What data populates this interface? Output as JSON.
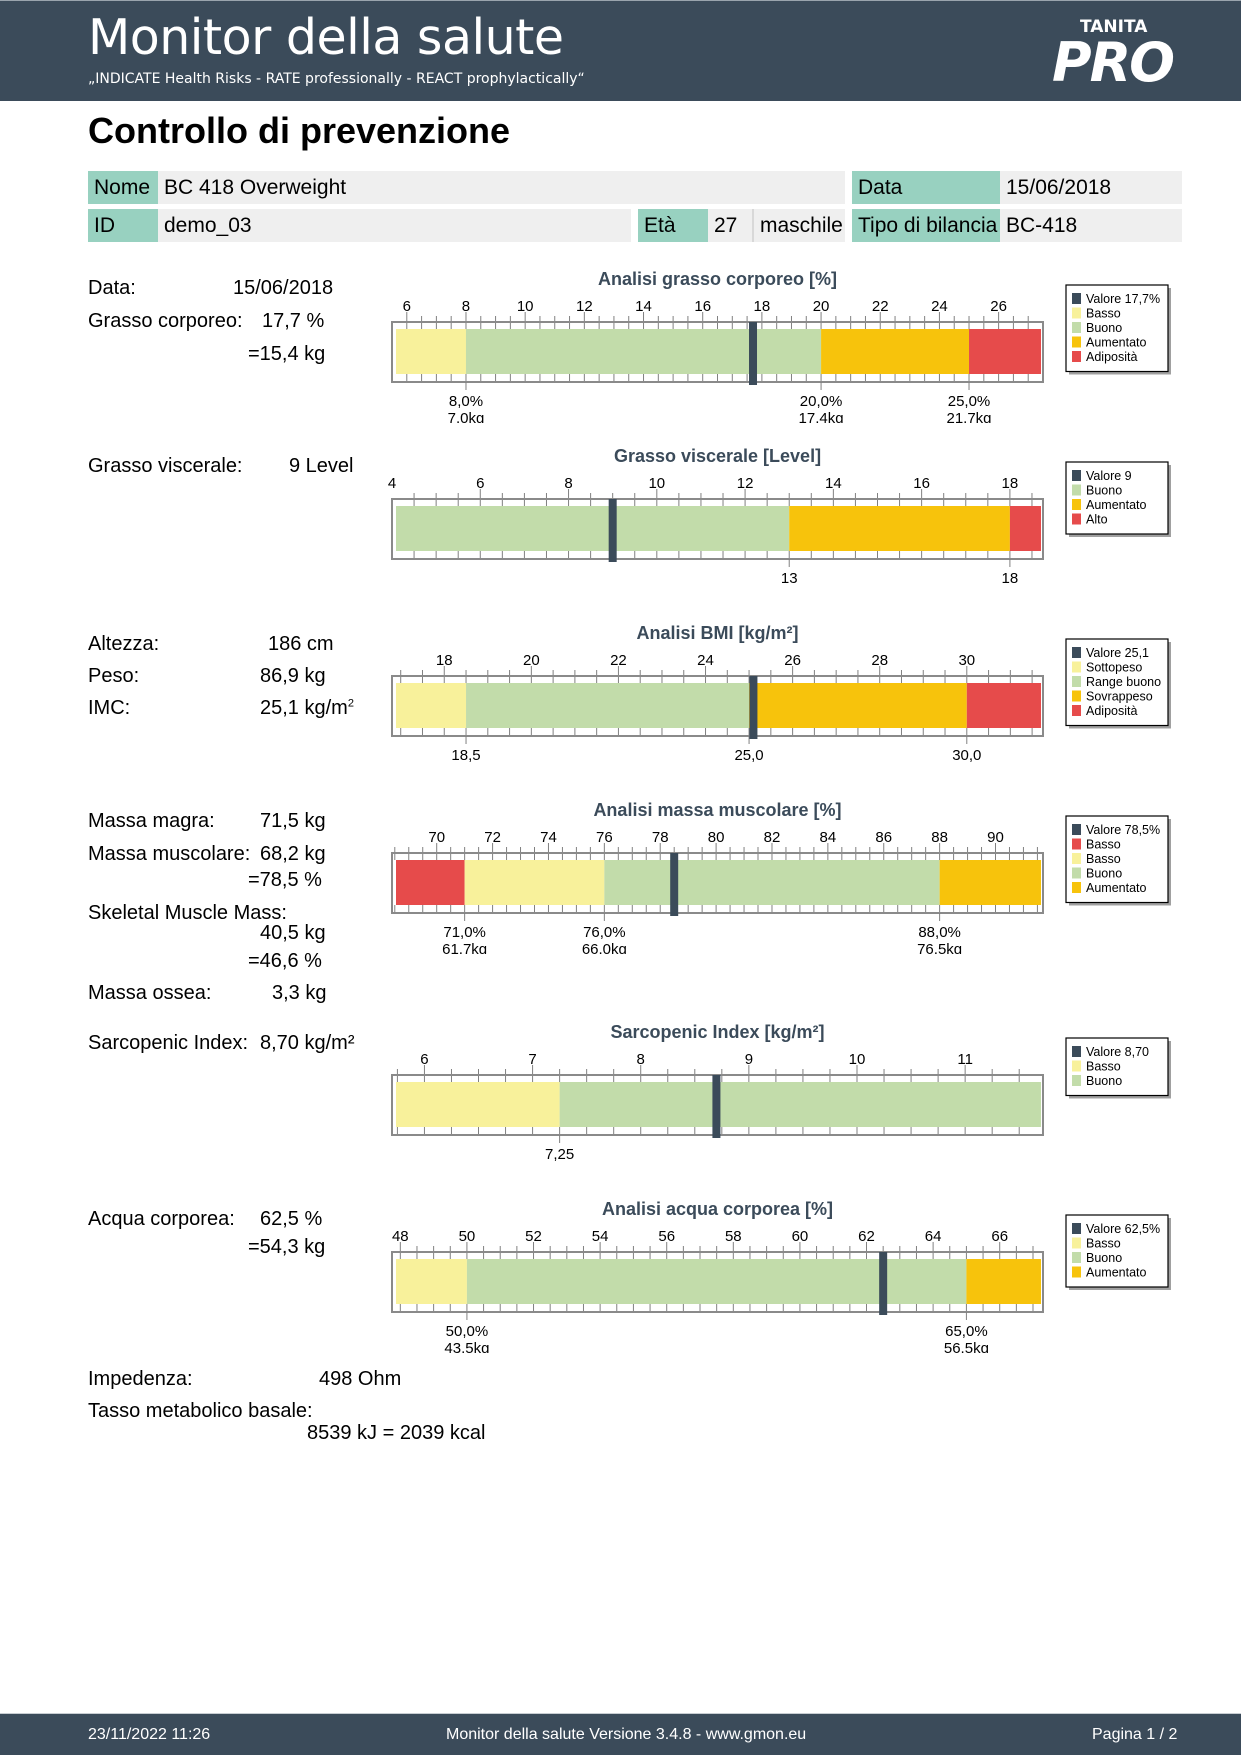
{
  "header": {
    "title": "Monitor della salute",
    "tagline": "„INDICATE Health Risks - RATE professionally - REACT prophylactically“",
    "logo_brand": "TANITA",
    "logo_product": "PRO"
  },
  "page_title": "Controllo di prevenzione",
  "patient": {
    "name_label": "Nome",
    "name_value": "BC 418 Overweight",
    "date_label": "Data",
    "date_value": "15/06/2018",
    "id_label": "ID",
    "id_value": "demo_03",
    "age_label": "Età",
    "age_value": "27",
    "sex_value": "maschile",
    "scale_label": "Tipo di bilancia",
    "scale_value": "BC-418"
  },
  "measurements": {
    "date_label": "Data:",
    "date_value": "15/06/2018",
    "body_fat_label": "Grasso corporeo:",
    "body_fat_value": "17,7 %",
    "body_fat_kg": "=15,4 kg",
    "visceral_label": "Grasso viscerale:",
    "visceral_value": "9 Level",
    "height_label": "Altezza:",
    "height_value": "186 cm",
    "weight_label": "Peso:",
    "weight_value": "86,9 kg",
    "bmi_label": "IMC:",
    "bmi_value": "25,1 kg/m",
    "bmi_sup": "2",
    "lean_label": "Massa magra:",
    "lean_value": "71,5 kg",
    "muscle_label": "Massa muscolare:",
    "muscle_value": "68,2 kg",
    "muscle_pct": "=78,5 %",
    "smm_label": "Skeletal Muscle Mass:",
    "smm_value": "40,5 kg",
    "smm_pct": "=46,6 %",
    "bone_label": "Massa ossea:",
    "bone_value": "3,3 kg",
    "sarcopenic_label": "Sarcopenic Index:",
    "sarcopenic_value": "8,70 kg/m²",
    "water_label": "Acqua corporea:",
    "water_value": "62,5 %",
    "water_kg": "=54,3 kg",
    "impedance_label": "Impedenza:",
    "impedance_value": "498 Ohm",
    "bmr_label": "Tasso metabolico basale:",
    "bmr_value": "8539 kJ = 2039 kcal"
  },
  "chart_data": [
    {
      "id": "fat",
      "type": "bar",
      "title": "Analisi grasso corporeo [%]",
      "xlim": [
        5.5,
        27.5
      ],
      "ticks": [
        6,
        8,
        10,
        12,
        14,
        16,
        18,
        20,
        22,
        24,
        26
      ],
      "minor_step": 0.5,
      "value": 17.7,
      "segments": [
        {
          "from": 5.5,
          "to": 8,
          "color": "#f8f19b"
        },
        {
          "from": 8,
          "to": 20,
          "color": "#c2dcaa"
        },
        {
          "from": 20,
          "to": 25,
          "color": "#f7c30c"
        },
        {
          "from": 25,
          "to": 27.5,
          "color": "#e64b4b"
        }
      ],
      "thresholds": [
        {
          "x": 8,
          "lines": [
            "8,0%",
            "7,0kg"
          ]
        },
        {
          "x": 20,
          "lines": [
            "20,0%",
            "17,4kg"
          ]
        },
        {
          "x": 25,
          "lines": [
            "25,0%",
            "21,7kg"
          ]
        }
      ],
      "legend": [
        {
          "label": "Valore 17,7%",
          "color": "#3b4b5a"
        },
        {
          "label": "Basso",
          "color": "#f8f19b"
        },
        {
          "label": "Buono",
          "color": "#c2dcaa"
        },
        {
          "label": "Aumentato",
          "color": "#f7c30c"
        },
        {
          "label": "Adiposità",
          "color": "#e64b4b"
        }
      ]
    },
    {
      "id": "visceral",
      "type": "bar",
      "title": "Grasso viscerale [Level]",
      "xlim": [
        4,
        18.75
      ],
      "ticks": [
        4,
        6,
        8,
        10,
        12,
        14,
        16,
        18
      ],
      "minor_step": 0.5,
      "value": 9,
      "segments": [
        {
          "from": 4,
          "to": 13,
          "color": "#c2dcaa"
        },
        {
          "from": 13,
          "to": 18,
          "color": "#f7c30c"
        },
        {
          "from": 18,
          "to": 18.75,
          "color": "#e64b4b"
        }
      ],
      "thresholds": [
        {
          "x": 13,
          "lines": [
            "13"
          ]
        },
        {
          "x": 18,
          "lines": [
            "18"
          ]
        }
      ],
      "legend": [
        {
          "label": "Valore 9",
          "color": "#3b4b5a"
        },
        {
          "label": "Buono",
          "color": "#c2dcaa"
        },
        {
          "label": "Aumentato",
          "color": "#f7c30c"
        },
        {
          "label": "Alto",
          "color": "#e64b4b"
        }
      ]
    },
    {
      "id": "bmi",
      "type": "bar",
      "title": "Analisi BMI [kg/m²]",
      "xlim": [
        16.8,
        31.75
      ],
      "ticks": [
        18,
        20,
        22,
        24,
        26,
        28,
        30
      ],
      "minor_step": 0.5,
      "value": 25.1,
      "segments": [
        {
          "from": 16.8,
          "to": 18.5,
          "color": "#f8f19b"
        },
        {
          "from": 18.5,
          "to": 25,
          "color": "#c2dcaa"
        },
        {
          "from": 25,
          "to": 30,
          "color": "#f7c30c"
        },
        {
          "from": 30,
          "to": 31.75,
          "color": "#e64b4b"
        }
      ],
      "thresholds": [
        {
          "x": 18.5,
          "lines": [
            "18,5"
          ]
        },
        {
          "x": 25,
          "lines": [
            "25,0"
          ]
        },
        {
          "x": 30,
          "lines": [
            "30,0"
          ]
        }
      ],
      "legend": [
        {
          "label": "Valore 25,1",
          "color": "#3b4b5a"
        },
        {
          "label": "Sottopeso",
          "color": "#f8f19b"
        },
        {
          "label": "Range buono",
          "color": "#c2dcaa"
        },
        {
          "label": "Sovrappeso",
          "color": "#f7c30c"
        },
        {
          "label": "Adiposità",
          "color": "#e64b4b"
        }
      ]
    },
    {
      "id": "muscle",
      "type": "bar",
      "title": "Analisi massa muscolare [%]",
      "xlim": [
        68.4,
        91.7
      ],
      "ticks": [
        70,
        72,
        74,
        76,
        78,
        80,
        82,
        84,
        86,
        88,
        90
      ],
      "minor_step": 0.5,
      "value": 78.5,
      "segments": [
        {
          "from": 68.4,
          "to": 71,
          "color": "#e64b4b"
        },
        {
          "from": 71,
          "to": 76,
          "color": "#f8f19b"
        },
        {
          "from": 76,
          "to": 88,
          "color": "#c2dcaa"
        },
        {
          "from": 88,
          "to": 91.7,
          "color": "#f7c30c"
        }
      ],
      "thresholds": [
        {
          "x": 71,
          "lines": [
            "71,0%",
            "61,7kg"
          ]
        },
        {
          "x": 76,
          "lines": [
            "76,0%",
            "66,0kg"
          ]
        },
        {
          "x": 88,
          "lines": [
            "88,0%",
            "76,5kg"
          ]
        }
      ],
      "legend": [
        {
          "label": "Valore 78,5%",
          "color": "#3b4b5a"
        },
        {
          "label": "Basso",
          "color": "#e64b4b"
        },
        {
          "label": "Basso",
          "color": "#f8f19b"
        },
        {
          "label": "Buono",
          "color": "#c2dcaa"
        },
        {
          "label": "Aumentato",
          "color": "#f7c30c"
        }
      ]
    },
    {
      "id": "sarcopenic",
      "type": "bar",
      "title": "Sarcopenic Index [kg/m²]",
      "xlim": [
        5.7,
        11.72
      ],
      "ticks": [
        6,
        7,
        8,
        9,
        10,
        11
      ],
      "minor_step": 0.25,
      "value": 8.7,
      "segments": [
        {
          "from": 5.7,
          "to": 7.25,
          "color": "#f8f19b"
        },
        {
          "from": 7.25,
          "to": 11.72,
          "color": "#c2dcaa"
        }
      ],
      "thresholds": [
        {
          "x": 7.25,
          "lines": [
            "7,25"
          ]
        }
      ],
      "legend": [
        {
          "label": "Valore 8,70",
          "color": "#3b4b5a"
        },
        {
          "label": "Basso",
          "color": "#f8f19b"
        },
        {
          "label": "Buono",
          "color": "#c2dcaa"
        }
      ]
    },
    {
      "id": "water",
      "type": "bar",
      "title": "Analisi acqua corporea [%]",
      "xlim": [
        47.75,
        67.3
      ],
      "ticks": [
        48,
        50,
        52,
        54,
        56,
        58,
        60,
        62,
        64,
        66
      ],
      "minor_step": 0.5,
      "value": 62.5,
      "segments": [
        {
          "from": 47.75,
          "to": 50,
          "color": "#f8f19b"
        },
        {
          "from": 50,
          "to": 65,
          "color": "#c2dcaa"
        },
        {
          "from": 65,
          "to": 67.3,
          "color": "#f7c30c"
        }
      ],
      "thresholds": [
        {
          "x": 50,
          "lines": [
            "50,0%",
            "43,5kg"
          ]
        },
        {
          "x": 65,
          "lines": [
            "65,0%",
            "56,5kg"
          ]
        }
      ],
      "legend": [
        {
          "label": "Valore 62,5%",
          "color": "#3b4b5a"
        },
        {
          "label": "Basso",
          "color": "#f8f19b"
        },
        {
          "label": "Buono",
          "color": "#c2dcaa"
        },
        {
          "label": "Aumentato",
          "color": "#f7c30c"
        }
      ]
    }
  ],
  "footer": {
    "timestamp": "23/11/2022 11:26",
    "version": "Monitor della salute Versione 3.4.8 - www.gmon.eu",
    "page": "Pagina 1 / 2"
  }
}
